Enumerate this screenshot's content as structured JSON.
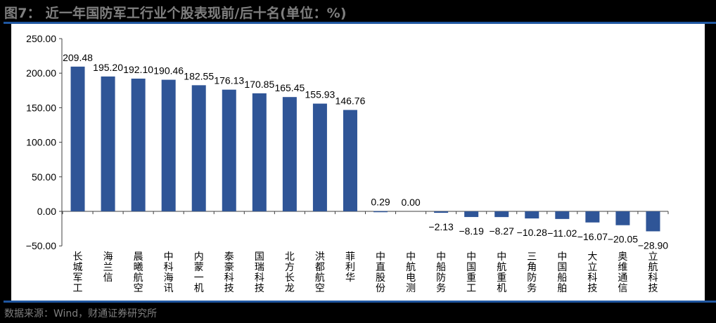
{
  "header": {
    "title": "图7：  近一年国防军工行业个股表现前/后十名(单位：%)"
  },
  "footer": {
    "source": "数据来源：Wind，财通证券研究所"
  },
  "colors": {
    "bar": "#2f5597",
    "rule": "#1f56a0",
    "title": "#7f7f7f",
    "background": "#000000",
    "panel": "#ffffff"
  },
  "chart_data": {
    "type": "bar",
    "title": "近一年国防军工行业个股表现前/后十名(单位：%)",
    "xlabel": "",
    "ylabel": "",
    "ylim": [
      -50,
      250
    ],
    "yticks": [
      "250.00",
      "200.00",
      "150.00",
      "100.00",
      "50.00",
      "0.00",
      "-50.00"
    ],
    "grid": false,
    "legend": null,
    "categories": [
      "长城军工",
      "海兰信",
      "晨曦航空",
      "中科海讯",
      "内蒙一机",
      "泰豪科技",
      "国瑞科技",
      "北方长龙",
      "洪都航空",
      "菲利华",
      "中直股份",
      "中航电测",
      "中船防务",
      "中国重工",
      "中航重机",
      "三角防务",
      "中国船舶",
      "大立科技",
      "奥维通信",
      "立航科技"
    ],
    "values": [
      209.48,
      195.2,
      192.1,
      190.46,
      182.55,
      176.13,
      170.85,
      165.45,
      155.93,
      146.76,
      0.29,
      0.0,
      -2.13,
      -8.19,
      -8.27,
      -10.28,
      -11.02,
      -16.07,
      -20.05,
      -28.9
    ],
    "labels": [
      "209.48",
      "195.20",
      "192.10",
      "190.46",
      "182.55",
      "176.13",
      "170.85",
      "165.45",
      "155.93",
      "146.76",
      "0.29",
      "0.00",
      "−2.13",
      "−8.19",
      "−8.27",
      "−10.28",
      "−11.02",
      "−16.07",
      "−20.05",
      "−28.90"
    ]
  }
}
